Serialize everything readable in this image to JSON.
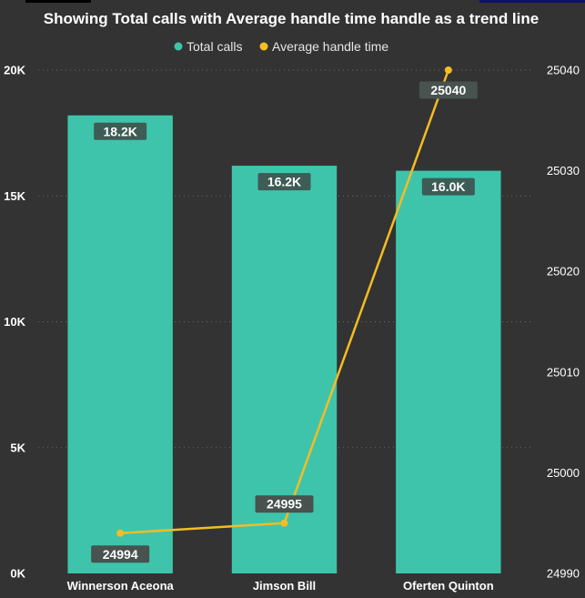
{
  "chart_data": {
    "type": "bar+line",
    "title": "Showing Total calls with Average handle time handle as a trend line",
    "legend": {
      "placement": "top-center",
      "entries": [
        {
          "name": "Total calls",
          "color": "#3ec4ab"
        },
        {
          "name": "Average handle time",
          "color": "#f5bc23"
        }
      ]
    },
    "categories": [
      "Winnerson Aceona",
      "Jimson Bill",
      "Oferten Quinton"
    ],
    "series": [
      {
        "name": "Total calls",
        "type": "bar",
        "axis": "left",
        "color": "#3ec4ab",
        "values": [
          18200,
          16200,
          16000
        ],
        "labels": [
          "18.2K",
          "16.2K",
          "16.0K"
        ]
      },
      {
        "name": "Average handle time",
        "type": "line",
        "axis": "right",
        "color": "#f5bc23",
        "values": [
          24994,
          24995,
          25040
        ],
        "labels": [
          "24994",
          "24995",
          "25040"
        ]
      }
    ],
    "y_left": {
      "range": [
        0,
        20000
      ],
      "ticks": [
        0,
        5000,
        10000,
        15000,
        20000
      ],
      "tick_labels": [
        "0K",
        "5K",
        "10K",
        "15K",
        "20K"
      ]
    },
    "y_right": {
      "range": [
        24990,
        25040
      ],
      "ticks": [
        24990,
        25000,
        25010,
        25020,
        25030,
        25040
      ],
      "tick_labels": [
        "24990",
        "25000",
        "25010",
        "25020",
        "25030",
        "25040"
      ]
    },
    "grid": true
  }
}
